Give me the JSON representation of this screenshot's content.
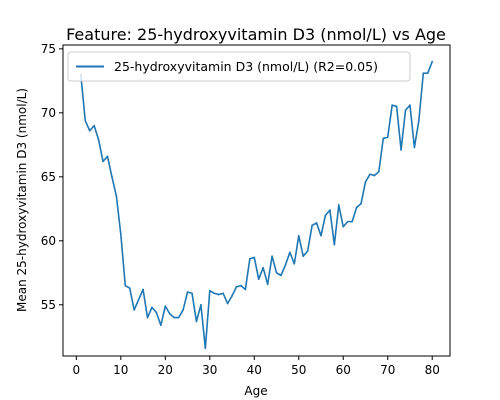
{
  "chart_data": {
    "type": "line",
    "title": "Feature: 25-hydroxyvitamin D3 (nmol/L) vs Age",
    "xlabel": "Age",
    "ylabel": "Mean 25-hydroxyvitamin D3 (nmol/L)",
    "xlim": [
      -3,
      84
    ],
    "ylim": [
      51,
      75.3
    ],
    "xticks": [
      0,
      10,
      20,
      30,
      40,
      50,
      60,
      70,
      80
    ],
    "yticks": [
      55,
      60,
      65,
      70,
      75
    ],
    "grid": false,
    "legend_position": "upper-left",
    "series": [
      {
        "name": "25-hydroxyvitamin D3 (nmol/L) (R2=0.05)",
        "color": "#1f77b4",
        "x": [
          1,
          2,
          3,
          4,
          5,
          6,
          7,
          8,
          9,
          10,
          11,
          12,
          13,
          14,
          15,
          16,
          17,
          18,
          19,
          20,
          21,
          22,
          23,
          24,
          25,
          26,
          27,
          28,
          29,
          30,
          31,
          32,
          33,
          34,
          35,
          36,
          37,
          38,
          39,
          40,
          41,
          42,
          43,
          44,
          45,
          46,
          47,
          48,
          49,
          50,
          51,
          52,
          53,
          54,
          55,
          56,
          57,
          58,
          59,
          60,
          61,
          62,
          63,
          64,
          65,
          66,
          67,
          68,
          69,
          70,
          71,
          72,
          73,
          74,
          75,
          76,
          77,
          78,
          79,
          80
        ],
        "y": [
          73.0,
          69.4,
          68.6,
          69.0,
          67.9,
          66.2,
          66.6,
          65.0,
          63.5,
          60.5,
          56.5,
          56.3,
          54.6,
          55.4,
          56.2,
          54.0,
          54.8,
          54.4,
          53.4,
          54.9,
          54.3,
          54.0,
          54.0,
          54.6,
          56.0,
          55.9,
          53.7,
          55.0,
          51.6,
          56.1,
          55.9,
          55.8,
          55.9,
          55.1,
          55.7,
          56.4,
          56.5,
          56.2,
          58.6,
          58.7,
          57.0,
          57.9,
          56.6,
          58.8,
          57.5,
          57.3,
          58.1,
          59.1,
          58.2,
          60.4,
          58.8,
          59.2,
          61.2,
          61.4,
          60.4,
          62.0,
          62.4,
          59.7,
          62.8,
          61.1,
          61.5,
          61.5,
          62.6,
          62.9,
          64.6,
          65.2,
          65.1,
          65.4,
          68.0,
          68.1,
          70.6,
          70.5,
          67.1,
          70.2,
          70.6,
          67.3,
          69.4,
          73.1,
          73.1,
          74.0
        ]
      }
    ]
  }
}
